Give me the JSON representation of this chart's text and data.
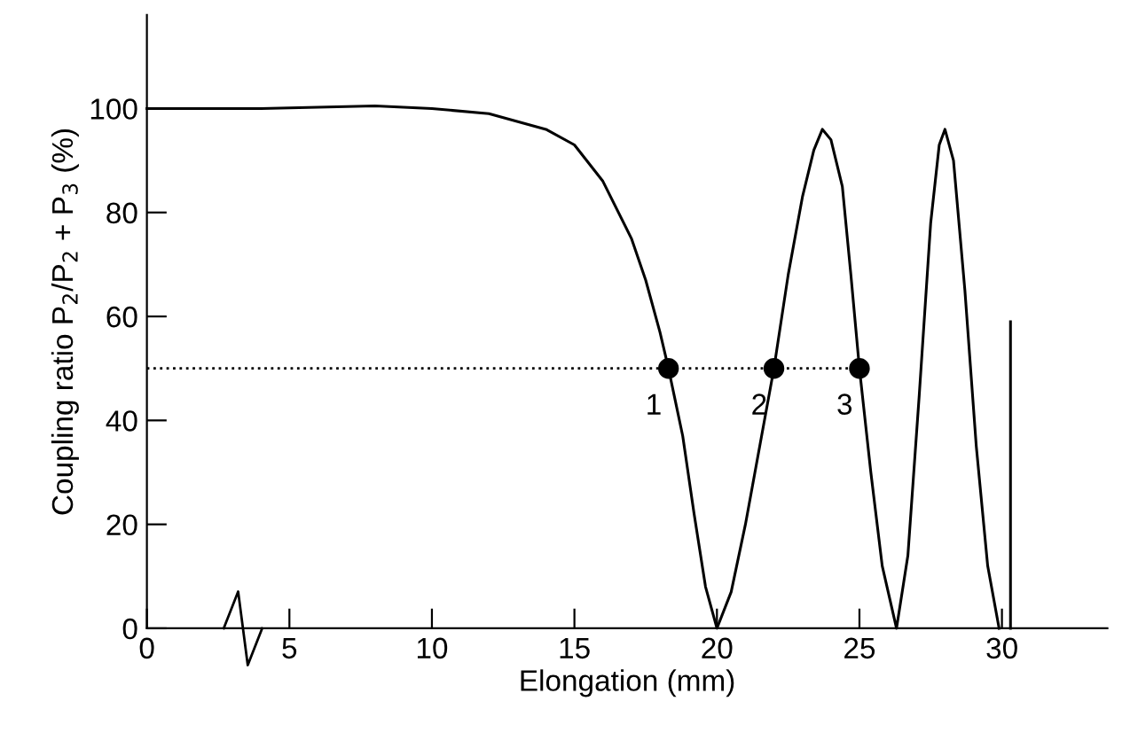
{
  "chart_data": {
    "type": "line",
    "xlabel": "Elongation (mm)",
    "ylabel": "Coupling ratio P$_{2}$/P$_{2}$ + P$_{3}$ (%)",
    "xlim": [
      0,
      33.7
    ],
    "ylim": [
      0,
      118
    ],
    "xticks": [
      0,
      5,
      10,
      15,
      20,
      25,
      30
    ],
    "yticks": [
      0,
      20,
      40,
      60,
      80,
      100
    ],
    "grid": false,
    "legend": false,
    "marker": "none",
    "series": [
      {
        "color": "#000000",
        "line_style": "solid",
        "x": [
          0,
          4,
          8,
          10,
          12,
          14,
          15,
          16,
          17,
          17.5,
          18,
          18.3,
          18.8,
          19.2,
          19.6,
          20,
          20.5,
          21,
          21.5,
          22,
          22.5,
          23,
          23.4,
          23.7,
          24,
          24.4,
          24.7,
          25,
          25.4,
          25.8,
          26.3,
          26.7,
          27.1,
          27.5,
          27.8,
          28,
          28.3,
          28.7,
          29.1,
          29.5,
          29.9
        ],
        "values": [
          100,
          100,
          100.5,
          100,
          99,
          96,
          93,
          86,
          75,
          67,
          57,
          50,
          37,
          22,
          8,
          0,
          7,
          20,
          35,
          50,
          68,
          83,
          92,
          96,
          94,
          85,
          68,
          50,
          30,
          12,
          0,
          14,
          45,
          78,
          93,
          96,
          90,
          65,
          35,
          12,
          0
        ]
      },
      {
        "color": "#000000",
        "line_style": "solid",
        "x": [
          30.3,
          30.3
        ],
        "values": [
          0,
          59
        ]
      },
      {
        "color": "#000000",
        "line_style": "dotted",
        "x": [
          0,
          25
        ],
        "values": [
          50,
          50
        ]
      },
      {
        "type": "scatter",
        "color": "#000000",
        "marker": "circle",
        "x": [
          18.3,
          22,
          25
        ],
        "values": [
          50,
          50,
          50
        ]
      }
    ],
    "annotations": [
      {
        "text": "1",
        "x": 18.3,
        "y": 50
      },
      {
        "text": "2",
        "x": 22,
        "y": 50
      },
      {
        "text": "3",
        "x": 25,
        "y": 50
      }
    ]
  }
}
